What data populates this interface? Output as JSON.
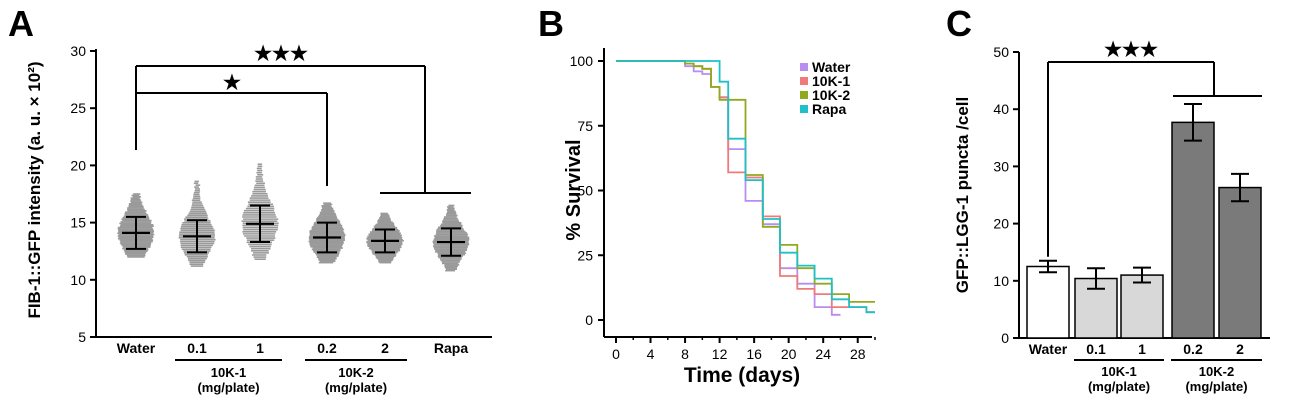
{
  "chart_data": [
    {
      "panel": "A",
      "type": "scatter",
      "ylabel": "FIB-1::GFP intensity (a. u. × 10²)",
      "ylim": [
        5,
        30
      ],
      "yticks": [
        5,
        10,
        15,
        20,
        25,
        30
      ],
      "categories": [
        "Water",
        "0.1",
        "1",
        "0.2",
        "2",
        "Rapa"
      ],
      "groups": [
        {
          "label": "10K-1",
          "sublabel": "(mg/plate)",
          "members": [
            "0.1",
            "1"
          ]
        },
        {
          "label": "10K-2",
          "sublabel": "(mg/plate)",
          "members": [
            "0.2",
            "2"
          ]
        }
      ],
      "series": [
        {
          "category": "Water",
          "mean": 14.1,
          "sd": 1.4,
          "min": 12.0,
          "max": 17.5,
          "color": "#9a9a9a"
        },
        {
          "category": "0.1",
          "mean": 13.8,
          "sd": 1.4,
          "min": 11.2,
          "max": 18.6,
          "color": "#9a9a9a"
        },
        {
          "category": "1",
          "mean": 14.9,
          "sd": 1.6,
          "min": 11.8,
          "max": 20.1,
          "color": "#9a9a9a"
        },
        {
          "category": "0.2",
          "mean": 13.7,
          "sd": 1.3,
          "min": 11.5,
          "max": 16.7,
          "color": "#9a9a9a"
        },
        {
          "category": "2",
          "mean": 13.4,
          "sd": 1.0,
          "min": 11.5,
          "max": 15.8,
          "color": "#9a9a9a"
        },
        {
          "category": "Rapa",
          "mean": 13.3,
          "sd": 1.2,
          "min": 10.8,
          "max": 16.5,
          "color": "#9a9a9a"
        }
      ],
      "significance": [
        {
          "label": "★★★",
          "from": "Water",
          "to": [
            "2",
            "Rapa"
          ]
        },
        {
          "label": "★",
          "from": "Water",
          "to": [
            "0.2"
          ]
        }
      ]
    },
    {
      "panel": "B",
      "type": "line",
      "xlabel": "Time (days)",
      "ylabel": "% Survival",
      "xlim": [
        0,
        30
      ],
      "ylim": [
        0,
        100
      ],
      "xticks": [
        0,
        4,
        8,
        12,
        16,
        20,
        24,
        28
      ],
      "yticks": [
        0,
        25,
        50,
        75,
        100
      ],
      "legend_position": "top-right",
      "series": [
        {
          "name": "Water",
          "color": "#b98cf0",
          "x": [
            0,
            8,
            9,
            10,
            11,
            12,
            13,
            14,
            15,
            16,
            17,
            18,
            19,
            20,
            21,
            22,
            23,
            24,
            25,
            26
          ],
          "y": [
            100,
            98,
            96,
            95,
            90,
            86,
            66,
            66,
            46,
            46,
            37,
            37,
            20,
            20,
            14,
            14,
            5,
            5,
            2,
            2
          ]
        },
        {
          "name": "10K-1",
          "color": "#f07a7a",
          "x": [
            0,
            8,
            9,
            10,
            11,
            12,
            13,
            14,
            15,
            16,
            17,
            18,
            19,
            20,
            21,
            22,
            23,
            24,
            25,
            26,
            27,
            28,
            29,
            30
          ],
          "y": [
            100,
            99,
            98,
            97,
            90,
            86,
            57,
            57,
            55,
            55,
            40,
            40,
            17,
            17,
            12,
            12,
            10,
            10,
            5,
            5,
            5,
            5,
            3,
            3
          ]
        },
        {
          "name": "10K-2",
          "color": "#8faa1e",
          "x": [
            0,
            8,
            9,
            10,
            11,
            12,
            13,
            14,
            15,
            16,
            17,
            18,
            19,
            20,
            21,
            22,
            23,
            24,
            25,
            26,
            27,
            28,
            29,
            30
          ],
          "y": [
            100,
            99,
            98,
            97,
            90,
            85,
            85,
            85,
            56,
            56,
            36,
            36,
            29,
            29,
            20,
            20,
            14,
            14,
            10,
            10,
            7,
            7,
            7,
            7
          ]
        },
        {
          "name": "Rapa",
          "color": "#1fc0c8",
          "x": [
            0,
            11,
            12,
            13,
            14,
            15,
            16,
            17,
            18,
            19,
            20,
            21,
            22,
            23,
            24,
            25,
            26,
            27,
            28,
            29,
            30
          ],
          "y": [
            100,
            100,
            92,
            70,
            70,
            54,
            54,
            39,
            39,
            26,
            26,
            21,
            21,
            16,
            16,
            8,
            8,
            5,
            5,
            3,
            3
          ]
        }
      ]
    },
    {
      "panel": "C",
      "type": "bar",
      "ylabel": "GFP::LGG-1 puncta /cell",
      "ylim": [
        0,
        50
      ],
      "yticks": [
        0,
        10,
        20,
        30,
        40,
        50
      ],
      "categories": [
        "Water",
        "0.1",
        "1",
        "0.2",
        "2"
      ],
      "groups": [
        {
          "label": "10K-1",
          "sublabel": "(mg/plate)",
          "members": [
            "0.1",
            "1"
          ]
        },
        {
          "label": "10K-2",
          "sublabel": "(mg/plate)",
          "members": [
            "0.2",
            "2"
          ]
        }
      ],
      "series": [
        {
          "category": "Water",
          "value": 12.5,
          "err": 1.0,
          "color": "#ffffff"
        },
        {
          "category": "0.1",
          "value": 10.4,
          "err": 1.8,
          "color": "#d8d8d8"
        },
        {
          "category": "1",
          "value": 11.0,
          "err": 1.3,
          "color": "#d8d8d8"
        },
        {
          "category": "0.2",
          "value": 37.7,
          "err": 3.2,
          "color": "#7a7a7a"
        },
        {
          "category": "2",
          "value": 26.3,
          "err": 2.4,
          "color": "#7a7a7a"
        }
      ],
      "significance": [
        {
          "label": "★★★",
          "from": "Water",
          "to": [
            "0.2",
            "2"
          ]
        }
      ]
    }
  ]
}
